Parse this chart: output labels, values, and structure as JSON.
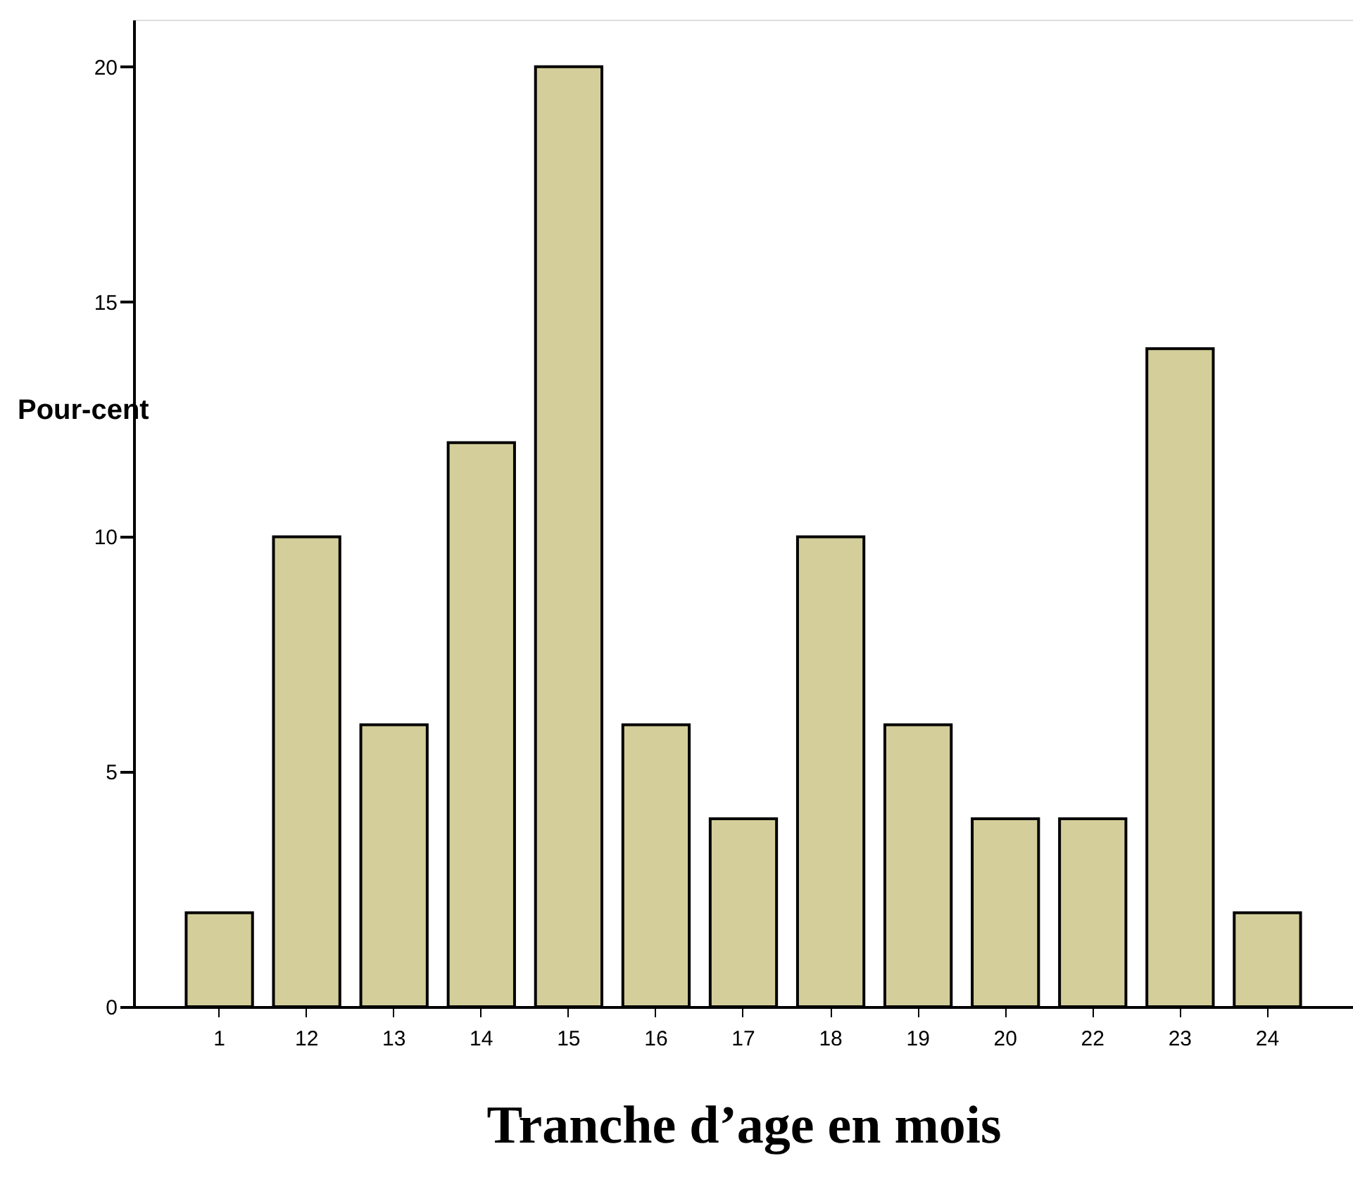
{
  "chart_data": {
    "type": "bar",
    "xlabel": "Tranche d’age en mois",
    "ylabel": "Pour-cent",
    "categories": [
      "1",
      "12",
      "13",
      "14",
      "15",
      "16",
      "17",
      "18",
      "19",
      "20",
      "22",
      "23",
      "24"
    ],
    "values": [
      2,
      10,
      6,
      12,
      20,
      6,
      4,
      10,
      6,
      4,
      4,
      14,
      2
    ],
    "color": "#d4cf9a",
    "ylim": [
      0,
      21
    ],
    "yticks": [
      0,
      5,
      10,
      15,
      20
    ],
    "grid": false
  }
}
